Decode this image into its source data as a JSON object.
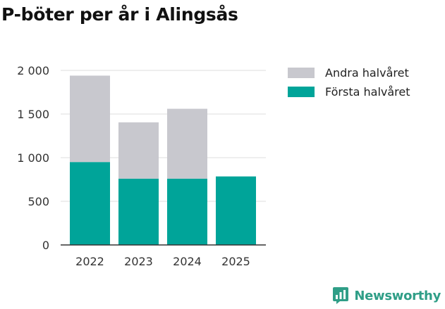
{
  "chart_data": {
    "type": "bar",
    "stacked": true,
    "title": "P-böter per år i Alingsås",
    "categories": [
      "2022",
      "2023",
      "2024",
      "2025"
    ],
    "series": [
      {
        "name": "Första halvåret",
        "values": [
          950,
          760,
          760,
          785
        ],
        "color": "#00a499"
      },
      {
        "name": "Andra halvåret",
        "values": [
          990,
          645,
          800,
          0
        ],
        "color": "#c8c8ce"
      }
    ],
    "yticks": [
      0,
      500,
      1000,
      1500,
      2000
    ],
    "ytick_labels": [
      "0",
      "500",
      "1 000",
      "1 500",
      "2 000"
    ],
    "ylim": [
      0,
      2000
    ],
    "grid": true,
    "legend_position": "right",
    "legend_order": [
      "Andra halvåret",
      "Första halvåret"
    ]
  },
  "brand": {
    "name": "Newsworthy",
    "icon": "bar-chart-speech-bubble-icon",
    "color": "#2f9e87"
  }
}
